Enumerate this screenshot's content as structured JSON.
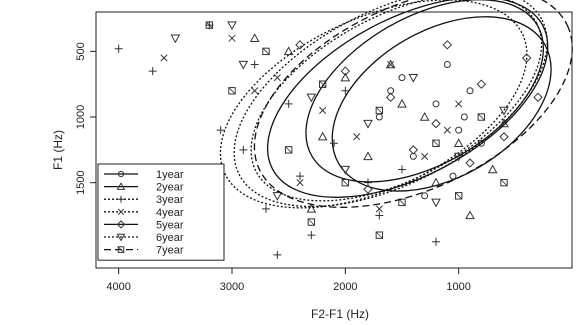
{
  "chart_data": {
    "type": "scatter",
    "xlabel": "F2-F1 (Hz)",
    "ylabel": "F1 (Hz)",
    "x_reversed": true,
    "y_reversed": true,
    "xlim": [
      4200,
      0
    ],
    "ylim": [
      200,
      2150
    ],
    "x_ticks": [
      4000,
      3000,
      2000,
      1000
    ],
    "x_tick_labels": [
      "4000",
      "3000",
      "2000",
      "1000"
    ],
    "y_ticks": [
      500,
      1000,
      1500
    ],
    "y_tick_labels": [
      "500",
      "1000",
      "1500"
    ],
    "grid": false,
    "legend_position": "bottom-left",
    "series": [
      {
        "name": "1year",
        "marker": "circle",
        "line": "solid",
        "ellipse": {
          "cx": 1150,
          "cy": 900,
          "rx": 1050,
          "ry": 560,
          "angle_deg": -30
        },
        "points": [
          [
            1500,
            700
          ],
          [
            1200,
            900
          ],
          [
            1000,
            1100
          ],
          [
            1400,
            1300
          ],
          [
            900,
            800
          ],
          [
            1700,
            1000
          ],
          [
            1100,
            600
          ],
          [
            800,
            1200
          ],
          [
            1300,
            1600
          ],
          [
            950,
            1000
          ],
          [
            1600,
            800
          ],
          [
            1050,
            1450
          ]
        ]
      },
      {
        "name": "2year",
        "marker": "triangle",
        "line": "solid",
        "ellipse": {
          "cx": 1450,
          "cy": 850,
          "rx": 1350,
          "ry": 600,
          "angle_deg": -28
        },
        "points": [
          [
            2500,
            500
          ],
          [
            2000,
            700
          ],
          [
            1500,
            900
          ],
          [
            1000,
            1200
          ],
          [
            2800,
            400
          ],
          [
            1200,
            1500
          ],
          [
            600,
            1050
          ],
          [
            1800,
            1300
          ],
          [
            2300,
            1700
          ],
          [
            900,
            1750
          ],
          [
            1600,
            600
          ],
          [
            700,
            1400
          ],
          [
            2200,
            1150
          ],
          [
            1300,
            1000
          ]
        ]
      },
      {
        "name": "3year",
        "marker": "plus",
        "line": "dotted",
        "ellipse": {
          "cx": 1750,
          "cy": 900,
          "rx": 1450,
          "ry": 650,
          "angle_deg": -25
        },
        "points": [
          [
            4000,
            480
          ],
          [
            3700,
            650
          ],
          [
            3200,
            300
          ],
          [
            2800,
            600
          ],
          [
            2500,
            900
          ],
          [
            2100,
            1200
          ],
          [
            1800,
            1500
          ],
          [
            3100,
            1100
          ],
          [
            2700,
            1700
          ],
          [
            2300,
            1900
          ],
          [
            1500,
            1400
          ],
          [
            2000,
            800
          ],
          [
            2900,
            1250
          ],
          [
            3300,
            1550
          ],
          [
            2600,
            2050
          ],
          [
            1200,
            1950
          ],
          [
            2400,
            1450
          ],
          [
            1700,
            1750
          ]
        ]
      },
      {
        "name": "4year",
        "marker": "x",
        "line": "dotted",
        "ellipse": {
          "cx": 1550,
          "cy": 850,
          "rx": 1400,
          "ry": 620,
          "angle_deg": -28
        },
        "points": [
          [
            3600,
            550
          ],
          [
            3000,
            400
          ],
          [
            2600,
            700
          ],
          [
            2200,
            950
          ],
          [
            1900,
            1150
          ],
          [
            1600,
            600
          ],
          [
            1300,
            1300
          ],
          [
            2400,
            1500
          ],
          [
            1000,
            900
          ],
          [
            2800,
            800
          ],
          [
            1700,
            1700
          ],
          [
            1100,
            1100
          ]
        ]
      },
      {
        "name": "5year",
        "marker": "diamond",
        "line": "solid",
        "ellipse": {
          "cx": 1300,
          "cy": 800,
          "rx": 1150,
          "ry": 560,
          "angle_deg": -30
        },
        "points": [
          [
            2400,
            450
          ],
          [
            2000,
            650
          ],
          [
            1600,
            850
          ],
          [
            1200,
            1050
          ],
          [
            800,
            750
          ],
          [
            400,
            550
          ],
          [
            1400,
            1250
          ],
          [
            900,
            1350
          ],
          [
            300,
            850
          ],
          [
            1800,
            1550
          ],
          [
            600,
            1150
          ],
          [
            1100,
            450
          ]
        ]
      },
      {
        "name": "6year",
        "marker": "triangle-down",
        "line": "dotted",
        "ellipse": {
          "cx": 1600,
          "cy": 850,
          "rx": 1500,
          "ry": 660,
          "angle_deg": -27
        },
        "points": [
          [
            3500,
            400
          ],
          [
            2900,
            600
          ],
          [
            2300,
            850
          ],
          [
            1800,
            1050
          ],
          [
            1400,
            700
          ],
          [
            1000,
            1300
          ],
          [
            3000,
            300
          ],
          [
            2000,
            1400
          ],
          [
            600,
            950
          ],
          [
            2600,
            1600
          ],
          [
            1200,
            1650
          ]
        ]
      },
      {
        "name": "7year",
        "marker": "square",
        "line": "dashed",
        "ellipse": {
          "cx": 1400,
          "cy": 850,
          "rx": 1500,
          "ry": 700,
          "angle_deg": -25
        },
        "points": [
          [
            3200,
            300
          ],
          [
            2700,
            500
          ],
          [
            2200,
            750
          ],
          [
            1700,
            950
          ],
          [
            1200,
            1200
          ],
          [
            800,
            1000
          ],
          [
            2000,
            1500
          ],
          [
            1500,
            1650
          ],
          [
            2500,
            1250
          ],
          [
            1000,
            1600
          ],
          [
            3000,
            800
          ],
          [
            1700,
            1900
          ],
          [
            600,
            1500
          ],
          [
            2300,
            1800
          ]
        ]
      }
    ]
  }
}
